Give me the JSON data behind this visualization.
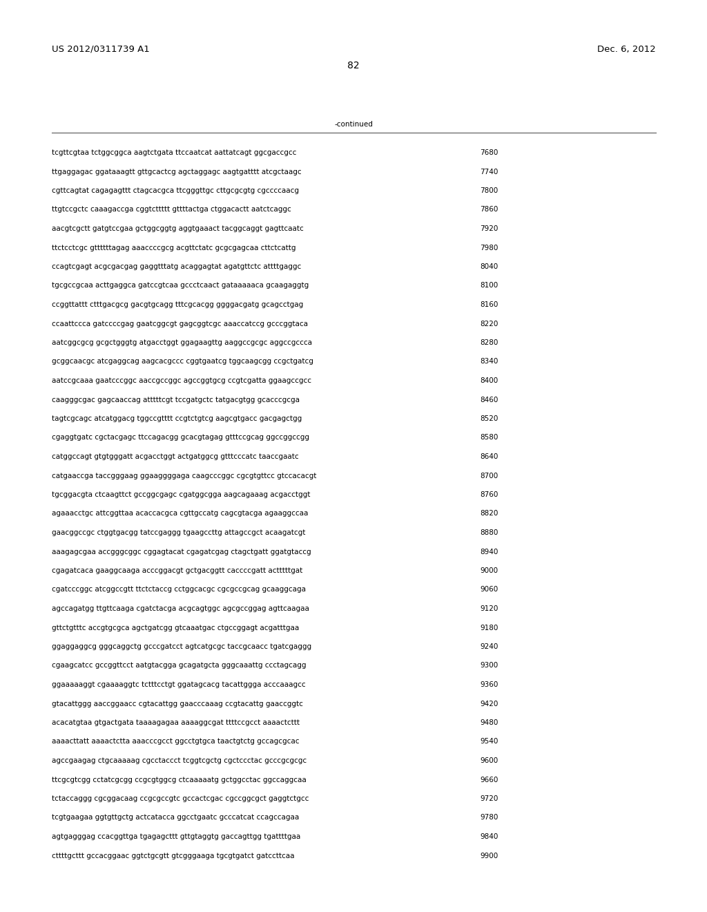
{
  "left_header": "US 2012/0311739 A1",
  "right_header": "Dec. 6, 2012",
  "page_number": "82",
  "continued_text": "-continued",
  "background_color": "#ffffff",
  "text_color": "#000000",
  "font_size_header": 9.5,
  "font_size_body": 7.5,
  "font_size_page": 10,
  "sequence_lines": [
    [
      "tcgttcgtaa tctggcggca aagtctgata ttccaatcat aattatcagt ggcgaccgcc",
      "7680"
    ],
    [
      "ttgaggagac ggataaagtt gttgcactcg agctaggagc aagtgatttt atcgctaagc",
      "7740"
    ],
    [
      "cgttcagtat cagagagttt ctagcacgca ttcgggttgc cttgcgcgtg cgccccaacg",
      "7800"
    ],
    [
      "ttgtccgctc caaagaccga cggtcttttt gttttactga ctggacactt aatctcaggc",
      "7860"
    ],
    [
      "aacgtcgctt gatgtccgaa gctggcggtg aggtgaaact tacggcaggt gagttcaatc",
      "7920"
    ],
    [
      "ttctcctcgc gttttttagag aaaccccgcg acgttctatc gcgcgagcaa cttctcattg",
      "7980"
    ],
    [
      "ccagtcgagt acgcgacgag gaggtttatg acaggagtat agatgttctc attttgaggc",
      "8040"
    ],
    [
      "tgcgccgcaa acttgaggca gatccgtcaa gccctcaact gataaaaaca gcaagaggtg",
      "8100"
    ],
    [
      "ccggttattt ctttgacgcg gacgtgcagg tttcgcacgg ggggacgatg gcagcctgag",
      "8160"
    ],
    [
      "ccaattccca gatccccgag gaatcggcgt gagcggtcgc aaaccatccg gcccggtaca",
      "8220"
    ],
    [
      "aatcggcgcg gcgctgggtg atgacctggt ggagaagttg aaggccgcgc aggccgccca",
      "8280"
    ],
    [
      "gcggcaacgc atcgaggcag aagcacgccc cggtgaatcg tggcaagcgg ccgctgatcg",
      "8340"
    ],
    [
      "aatccgcaaa gaatcccggc aaccgccggc agccggtgcg ccgtcgatta ggaagccgcc",
      "8400"
    ],
    [
      "caagggcgac gagcaaccag atttttcgt tccgatgctc tatgacgtgg gcacccgcga",
      "8460"
    ],
    [
      "tagtcgcagc atcatggacg tggccgtttt ccgtctgtcg aagcgtgacc gacgagctgg",
      "8520"
    ],
    [
      "cgaggtgatc cgctacgagc ttccagacgg gcacgtagag gtttccgcag ggccggccgg",
      "8580"
    ],
    [
      "catggccagt gtgtgggatt acgacctggt actgatggcg gtttcccatc taaccgaatc",
      "8640"
    ],
    [
      "catgaaccga taccgggaag ggaaggggaga caagcccggc cgcgtgttcc gtccacacgt",
      "8700"
    ],
    [
      "tgcggacgta ctcaagttct gccggcgagc cgatggcgga aagcagaaag acgacctggt",
      "8760"
    ],
    [
      "agaaacctgc attcggttaa acaccacgca cgttgccatg cagcgtacga agaaggccaa",
      "8820"
    ],
    [
      "gaacggccgc ctggtgacgg tatccgaggg tgaagccttg attagccgct acaagatcgt",
      "8880"
    ],
    [
      "aaagagcgaa accgggcggc cggagtacat cgagatcgag ctagctgatt ggatgtaccg",
      "8940"
    ],
    [
      "cgagatcaca gaaggcaaga acccggacgt gctgacggtt caccccgatt actttttgat",
      "9000"
    ],
    [
      "cgatcccggc atcggccgtt ttctctaccg cctggcacgc cgcgccgcag gcaaggcaga",
      "9060"
    ],
    [
      "agccagatgg ttgttcaaga cgatctacga acgcagtggc agcgccggag agttcaagaa",
      "9120"
    ],
    [
      "gttctgtttc accgtgcgca agctgatcgg gtcaaatgac ctgccggagt acgatttgaa",
      "9180"
    ],
    [
      "ggaggaggcg gggcaggctg gcccgatcct agtcatgcgc taccgcaacc tgatcgaggg",
      "9240"
    ],
    [
      "cgaagcatcc gccggttcct aatgtacgga gcagatgcta gggcaaattg ccctagcagg",
      "9300"
    ],
    [
      "ggaaaaaggt cgaaaaggtc tctttcctgt ggatagcacg tacattggga acccaaagcc",
      "9360"
    ],
    [
      "gtacattggg aaccggaacc cgtacattgg gaacccaaag ccgtacattg gaaccggtc",
      "9420"
    ],
    [
      "acacatgtaa gtgactgata taaaagagaa aaaaggcgat ttttccgcct aaaactcttt",
      "9480"
    ],
    [
      "aaaacttatt aaaactctta aaacccgcct ggcctgtgca taactgtctg gccagcgcac",
      "9540"
    ],
    [
      "agccgaagag ctgcaaaaag cgcctaccct tcggtcgctg cgctccctac gcccgcgcgc",
      "9600"
    ],
    [
      "ttcgcgtcgg cctatcgcgg ccgcgtggcg ctcaaaaatg gctggcctac ggccaggcaa",
      "9660"
    ],
    [
      "tctaccaggg cgcggacaag ccgcgccgtc gccactcgac cgccggcgct gaggtctgcc",
      "9720"
    ],
    [
      "tcgtgaagaa ggtgttgctg actcatacca ggcctgaatc gcccatcat ccagccagaa",
      "9780"
    ],
    [
      "agtgagggag ccacggttga tgagagcttt gttgtaggtg gaccagttgg tgattttgaa",
      "9840"
    ],
    [
      "cttttgcttt gccacggaac ggtctgcgtt gtcgggaaga tgcgtgatct gatccttcaa",
      "9900"
    ]
  ]
}
